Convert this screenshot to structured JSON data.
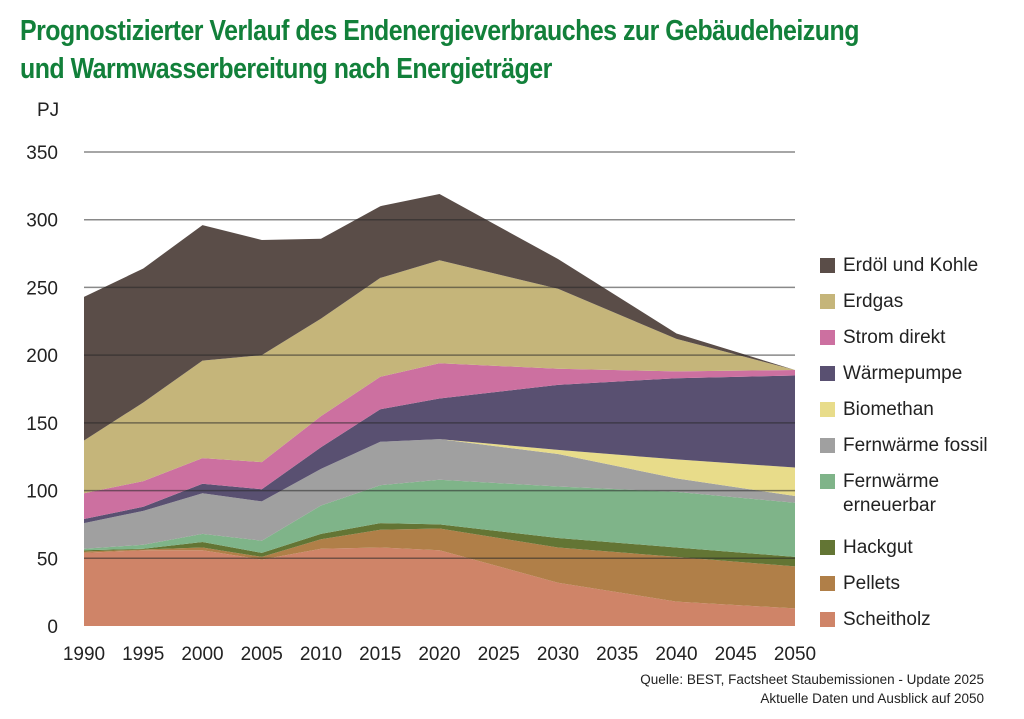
{
  "title_line1": "Prognostizierter Verlauf des Endenergieverbrauches zur Gebäudeheizung",
  "title_line2": "und Warmwasserbereitung nach Energieträger",
  "source_line1": "Quelle: BEST, Factsheet Staubemissionen - Update 2025",
  "source_line2": "Aktuelle Daten und Ausblick auf 2050",
  "chart_data": {
    "type": "area",
    "stacked": true,
    "title": "Prognostizierter Verlauf des Endenergieverbrauches zur Gebäudeheizung und Warmwasserbereitung nach Energieträger",
    "xlabel": "",
    "ylabel": "PJ",
    "ylim": [
      0,
      350
    ],
    "xlim": [
      1990,
      2050
    ],
    "yticks": [
      "0",
      "50",
      "100",
      "150",
      "200",
      "250",
      "300",
      "350"
    ],
    "ytick_values": [
      0,
      50,
      100,
      150,
      200,
      250,
      300,
      350
    ],
    "xticks": [
      "1990",
      "1995",
      "2000",
      "2005",
      "2010",
      "2015",
      "2020",
      "2025",
      "2030",
      "2035",
      "2040",
      "2045",
      "2050"
    ],
    "xtick_values": [
      1990,
      1995,
      2000,
      2005,
      2010,
      2015,
      2020,
      2025,
      2030,
      2035,
      2040,
      2045,
      2050
    ],
    "grid": true,
    "legend_position": "right",
    "x": [
      1990,
      1995,
      2000,
      2005,
      2010,
      2015,
      2020,
      2030,
      2040,
      2050
    ],
    "series": [
      {
        "name": "Scheitholz",
        "color": "#cf8468",
        "values": [
          54,
          56,
          56,
          49,
          57,
          58,
          56,
          32,
          18,
          13
        ]
      },
      {
        "name": "Pellets",
        "color": "#b07f48",
        "values": [
          1,
          0.5,
          2,
          2,
          7,
          13,
          16,
          26,
          33,
          31
        ]
      },
      {
        "name": "Hackgut",
        "color": "#637534",
        "values": [
          1,
          0.5,
          4,
          3,
          4,
          5,
          3,
          7,
          7,
          7
        ]
      },
      {
        "name": "Fernwärme erneuerbar",
        "color": "#7fb489",
        "values": [
          1,
          3,
          6,
          9,
          21,
          28,
          33,
          38,
          41,
          40
        ]
      },
      {
        "name": "Fernwärme fossil",
        "color": "#a0a0a0",
        "values": [
          19,
          25,
          30,
          29,
          27,
          32,
          30,
          24,
          10,
          5
        ]
      },
      {
        "name": "Biomethan",
        "color": "#e8dc8a",
        "values": [
          0,
          0,
          0,
          0,
          0,
          0,
          0,
          3,
          14,
          21
        ]
      },
      {
        "name": "Wärmepumpe",
        "color": "#595071",
        "values": [
          3,
          3,
          7,
          9,
          16,
          24,
          30,
          48,
          60,
          68
        ]
      },
      {
        "name": "Strom direkt",
        "color": "#cc70a0",
        "values": [
          19,
          19,
          19,
          20,
          23,
          24,
          26,
          12,
          5,
          4
        ]
      },
      {
        "name": "Erdgas",
        "color": "#c5b57a",
        "values": [
          39,
          58,
          72,
          79,
          72,
          73,
          76,
          59,
          24,
          0
        ]
      },
      {
        "name": "Erdöl und Kohle",
        "color": "#5a4d48",
        "values": [
          106,
          99,
          100,
          85,
          59,
          53,
          49,
          22,
          4,
          0
        ]
      }
    ],
    "legend": [
      {
        "label": "Erdöl und Kohle",
        "color": "#5a4d48"
      },
      {
        "label": "Erdgas",
        "color": "#c5b57a"
      },
      {
        "label": "Strom direkt",
        "color": "#cc70a0"
      },
      {
        "label": "Wärmepumpe",
        "color": "#595071"
      },
      {
        "label": "Biomethan",
        "color": "#e8dc8a"
      },
      {
        "label": "Fernwärme fossil",
        "color": "#a0a0a0"
      },
      {
        "label": "Fernwärme erneuerbar",
        "color": "#7fb489"
      },
      {
        "label": "Hackgut",
        "color": "#637534"
      },
      {
        "label": "Pellets",
        "color": "#b07f48"
      },
      {
        "label": "Scheitholz",
        "color": "#cf8468"
      }
    ]
  }
}
